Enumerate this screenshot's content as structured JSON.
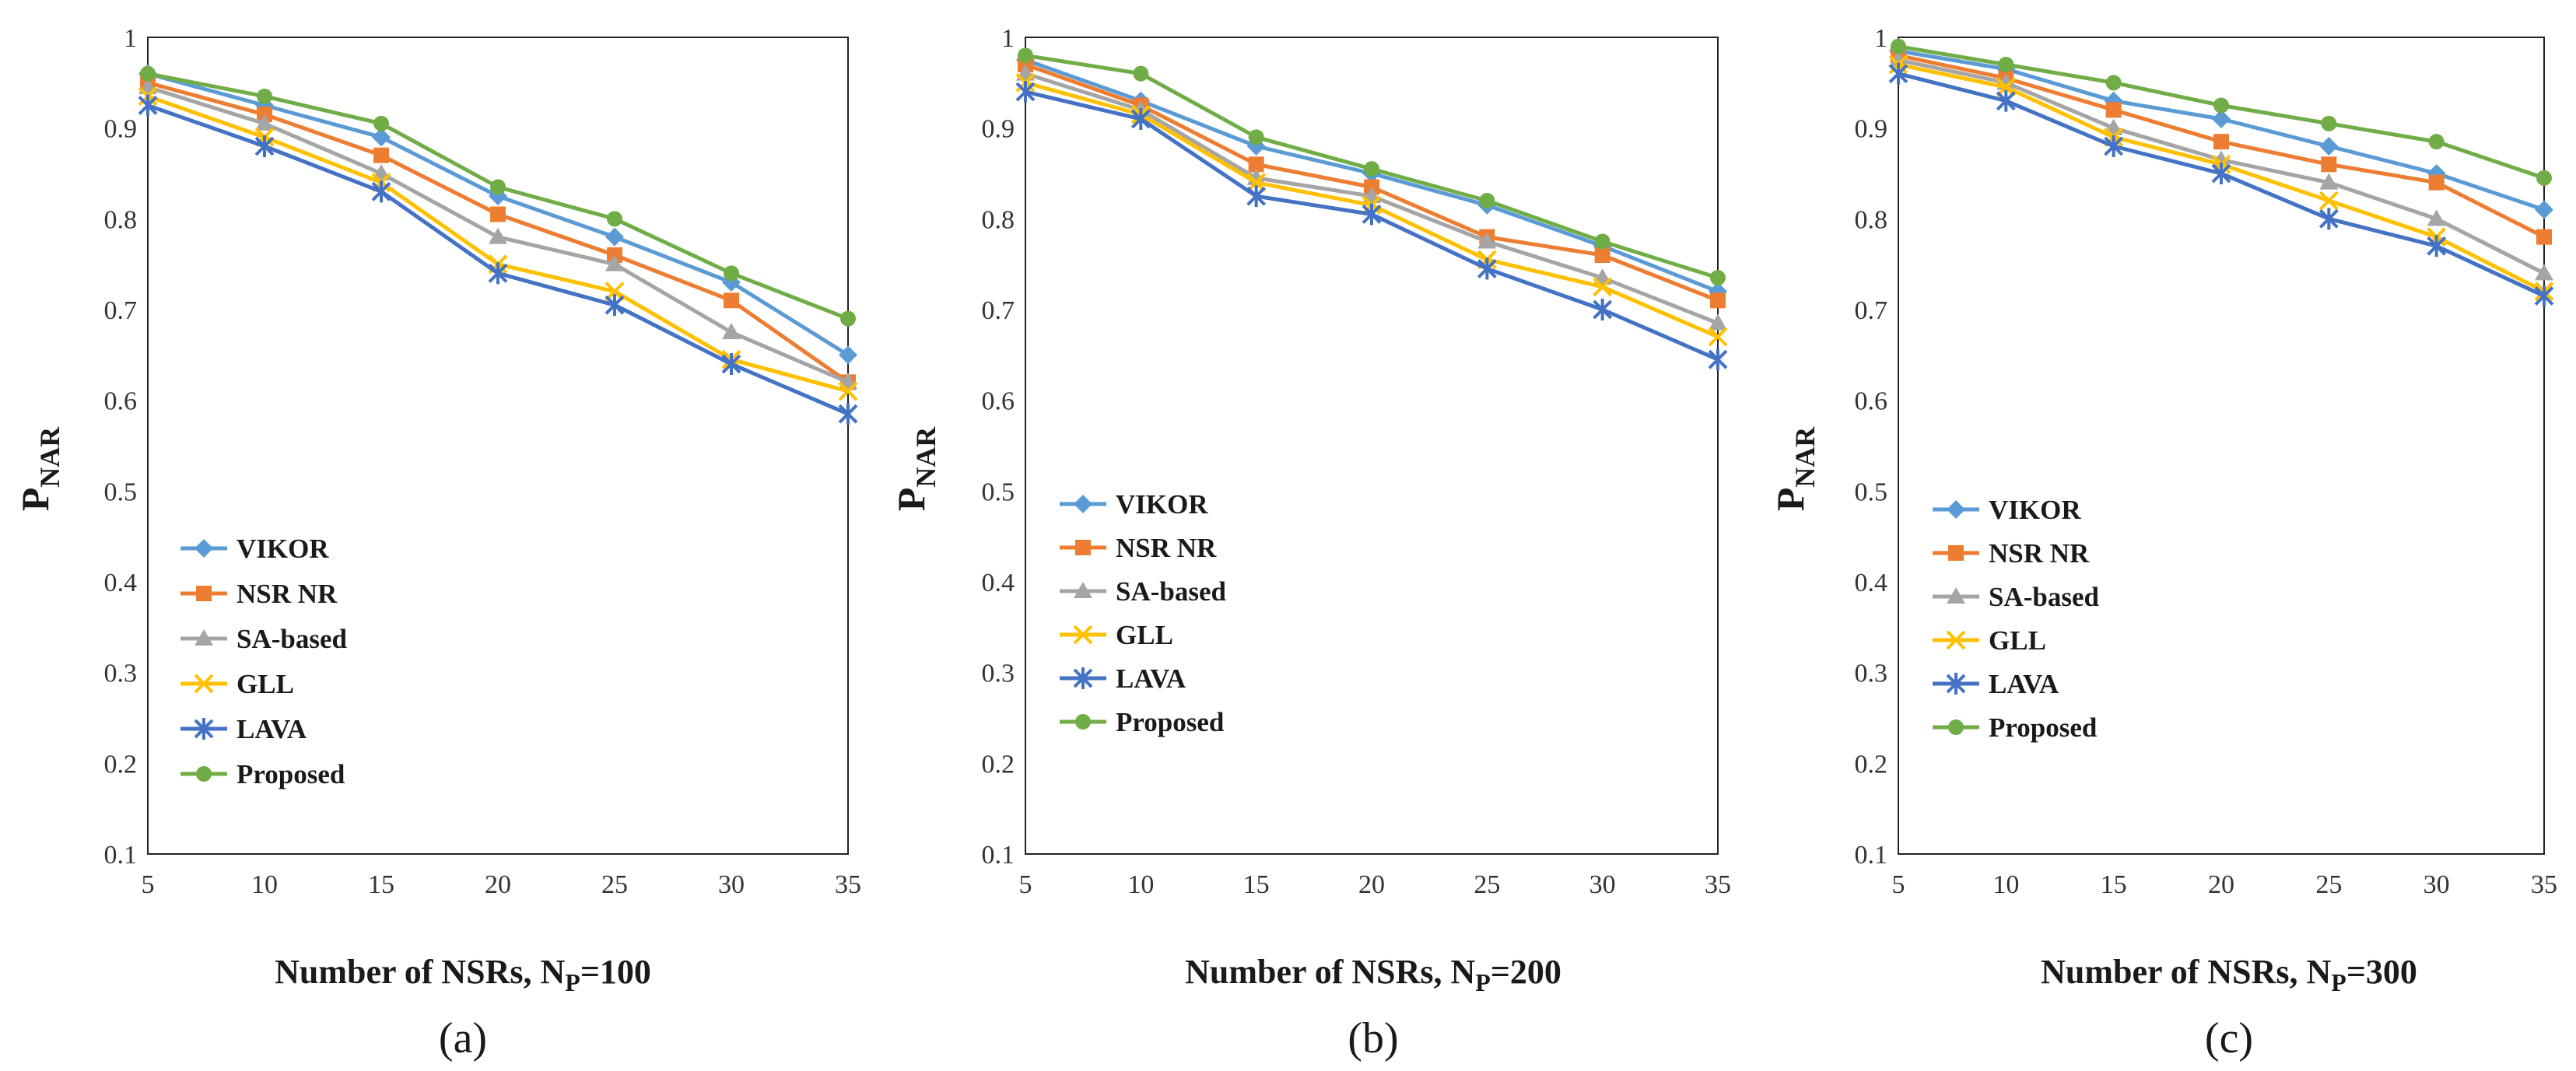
{
  "colors": {
    "VIKOR": "#5b9bd5",
    "NSR NR": "#ed7d31",
    "SA-based": "#a5a5a5",
    "GLL": "#ffc000",
    "LAVA": "#4472c4",
    "Proposed": "#70ad47"
  },
  "chart_data": [
    {
      "type": "line",
      "caption": "(a)",
      "xlabel": "Number of NSRs, N",
      "xlabel_sub": "P",
      "xlabel_tail": "=100",
      "ylabel": "P",
      "ylabel_sub": "NAR",
      "x": [
        5,
        10,
        15,
        20,
        25,
        30,
        35
      ],
      "x_tick_labels": [
        "5",
        "10",
        "15",
        "20",
        "25",
        "30",
        "35"
      ],
      "ylim": [
        0.1,
        1
      ],
      "y_tick_labels": [
        "0.1",
        "0.2",
        "0.3",
        "0.4",
        "0.5",
        "0.6",
        "0.7",
        "0.8",
        "0.9",
        "1"
      ],
      "legend_position": "bottom-left",
      "series": [
        {
          "name": "VIKOR",
          "marker": "diamond",
          "values": [
            0.96,
            0.925,
            0.89,
            0.825,
            0.78,
            0.73,
            0.65
          ]
        },
        {
          "name": "NSR NR",
          "marker": "square",
          "values": [
            0.95,
            0.915,
            0.87,
            0.805,
            0.76,
            0.71,
            0.62
          ]
        },
        {
          "name": "SA-based",
          "marker": "triangle",
          "values": [
            0.945,
            0.905,
            0.85,
            0.78,
            0.75,
            0.675,
            0.62
          ]
        },
        {
          "name": "GLL",
          "marker": "x",
          "values": [
            0.935,
            0.89,
            0.84,
            0.75,
            0.72,
            0.645,
            0.61
          ]
        },
        {
          "name": "LAVA",
          "marker": "star",
          "values": [
            0.925,
            0.88,
            0.83,
            0.74,
            0.705,
            0.64,
            0.585
          ]
        },
        {
          "name": "Proposed",
          "marker": "circle",
          "values": [
            0.96,
            0.935,
            0.905,
            0.835,
            0.8,
            0.74,
            0.69
          ]
        }
      ]
    },
    {
      "type": "line",
      "caption": "(b)",
      "xlabel": "Number of NSRs, N",
      "xlabel_sub": "P",
      "xlabel_tail": "=200",
      "ylabel": "P",
      "ylabel_sub": "NAR",
      "x": [
        5,
        10,
        15,
        20,
        25,
        30,
        35
      ],
      "x_tick_labels": [
        "5",
        "10",
        "15",
        "20",
        "25",
        "30",
        "35"
      ],
      "ylim": [
        0.1,
        1
      ],
      "y_tick_labels": [
        "0.1",
        "0.2",
        "0.3",
        "0.4",
        "0.5",
        "0.6",
        "0.7",
        "0.8",
        "0.9",
        "1"
      ],
      "legend_position": "center-left",
      "series": [
        {
          "name": "VIKOR",
          "marker": "diamond",
          "values": [
            0.975,
            0.93,
            0.88,
            0.85,
            0.815,
            0.77,
            0.72
          ]
        },
        {
          "name": "NSR NR",
          "marker": "square",
          "values": [
            0.97,
            0.925,
            0.86,
            0.835,
            0.78,
            0.76,
            0.71
          ]
        },
        {
          "name": "SA-based",
          "marker": "triangle",
          "values": [
            0.96,
            0.92,
            0.845,
            0.825,
            0.775,
            0.735,
            0.685
          ]
        },
        {
          "name": "GLL",
          "marker": "x",
          "values": [
            0.95,
            0.915,
            0.84,
            0.815,
            0.755,
            0.725,
            0.67
          ]
        },
        {
          "name": "LAVA",
          "marker": "star",
          "values": [
            0.94,
            0.91,
            0.825,
            0.805,
            0.745,
            0.7,
            0.645
          ]
        },
        {
          "name": "Proposed",
          "marker": "circle",
          "values": [
            0.98,
            0.96,
            0.89,
            0.855,
            0.82,
            0.775,
            0.735
          ]
        }
      ]
    },
    {
      "type": "line",
      "caption": "(c)",
      "xlabel": "Number of NSRs, N",
      "xlabel_sub": "P",
      "xlabel_tail": "=300",
      "ylabel": "P",
      "ylabel_sub": "NAR",
      "x": [
        5,
        10,
        15,
        20,
        25,
        30,
        35
      ],
      "x_tick_labels": [
        "5",
        "10",
        "15",
        "20",
        "25",
        "30",
        "35"
      ],
      "ylim": [
        0.1,
        1
      ],
      "y_tick_labels": [
        "0.1",
        "0.2",
        "0.3",
        "0.4",
        "0.5",
        "0.6",
        "0.7",
        "0.8",
        "0.9",
        "1"
      ],
      "legend_position": "center-left",
      "series": [
        {
          "name": "VIKOR",
          "marker": "diamond",
          "values": [
            0.985,
            0.965,
            0.93,
            0.91,
            0.88,
            0.85,
            0.81
          ]
        },
        {
          "name": "NSR NR",
          "marker": "square",
          "values": [
            0.98,
            0.955,
            0.92,
            0.885,
            0.86,
            0.84,
            0.78
          ]
        },
        {
          "name": "SA-based",
          "marker": "triangle",
          "values": [
            0.975,
            0.95,
            0.9,
            0.865,
            0.84,
            0.8,
            0.74
          ]
        },
        {
          "name": "GLL",
          "marker": "x",
          "values": [
            0.97,
            0.945,
            0.89,
            0.86,
            0.82,
            0.78,
            0.72
          ]
        },
        {
          "name": "LAVA",
          "marker": "star",
          "values": [
            0.96,
            0.93,
            0.88,
            0.85,
            0.8,
            0.77,
            0.715
          ]
        },
        {
          "name": "Proposed",
          "marker": "circle",
          "values": [
            0.99,
            0.97,
            0.95,
            0.925,
            0.905,
            0.885,
            0.845
          ]
        }
      ]
    }
  ]
}
